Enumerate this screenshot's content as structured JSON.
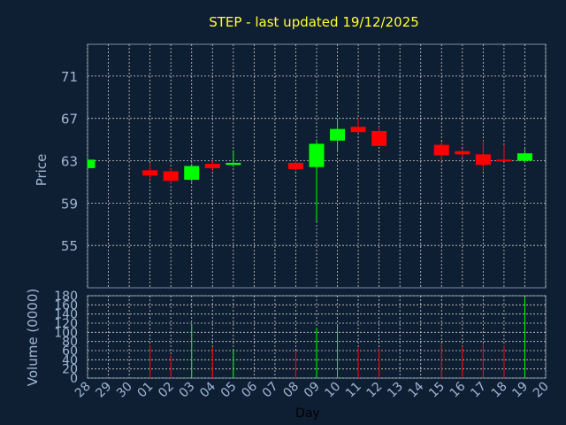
{
  "chart_data": {
    "type": "candlestick",
    "title": "STEP - last updated 19/12/2025",
    "xlabel": "Day",
    "x_ticks": [
      "28",
      "29",
      "30",
      "01",
      "02",
      "03",
      "04",
      "05",
      "06",
      "07",
      "08",
      "09",
      "10",
      "11",
      "12",
      "13",
      "14",
      "15",
      "16",
      "17",
      "18",
      "19",
      "20"
    ],
    "price_panel": {
      "ylabel": "Price",
      "yticks": [
        "55",
        "59",
        "63",
        "67",
        "71"
      ],
      "ylim": [
        51,
        74
      ]
    },
    "volume_panel": {
      "ylabel": "Volume (0000)",
      "yticks": [
        "0",
        "20",
        "40",
        "60",
        "80",
        "100",
        "120",
        "140",
        "160",
        "180"
      ],
      "ylim": [
        0,
        180
      ]
    },
    "candles": [
      {
        "day": "28",
        "open": 62.3,
        "high": 63.2,
        "low": 62.3,
        "close": 63.1,
        "volume": 0
      },
      {
        "day": "01",
        "open": 62.1,
        "high": 62.8,
        "low": 61.2,
        "close": 61.6,
        "volume": 72
      },
      {
        "day": "02",
        "open": 62.0,
        "high": 62.3,
        "low": 60.8,
        "close": 61.1,
        "volume": 50
      },
      {
        "day": "03",
        "open": 61.2,
        "high": 62.7,
        "low": 61.0,
        "close": 62.5,
        "volume": 118
      },
      {
        "day": "04",
        "open": 62.7,
        "high": 63.0,
        "low": 62.0,
        "close": 62.3,
        "volume": 68
      },
      {
        "day": "05",
        "open": 62.6,
        "high": 64.0,
        "low": 62.4,
        "close": 62.8,
        "volume": 62
      },
      {
        "day": "08",
        "open": 62.8,
        "high": 63.0,
        "low": 62.0,
        "close": 62.2,
        "volume": 60
      },
      {
        "day": "09",
        "open": 62.4,
        "high": 65.0,
        "low": 57.2,
        "close": 64.6,
        "volume": 110
      },
      {
        "day": "10",
        "open": 64.9,
        "high": 67.0,
        "low": 63.8,
        "close": 66.0,
        "volume": 118
      },
      {
        "day": "11",
        "open": 66.2,
        "high": 67.0,
        "low": 65.6,
        "close": 65.7,
        "volume": 66
      },
      {
        "day": "12",
        "open": 65.8,
        "high": 66.2,
        "low": 64.4,
        "close": 64.4,
        "volume": 65
      },
      {
        "day": "15",
        "open": 64.5,
        "high": 64.8,
        "low": 63.0,
        "close": 63.5,
        "volume": 74
      },
      {
        "day": "16",
        "open": 63.9,
        "high": 64.1,
        "low": 63.3,
        "close": 63.6,
        "volume": 70
      },
      {
        "day": "17",
        "open": 63.6,
        "high": 64.9,
        "low": 62.0,
        "close": 62.6,
        "volume": 74
      },
      {
        "day": "18",
        "open": 63.1,
        "high": 64.5,
        "low": 63.0,
        "close": 63.0,
        "volume": 72
      },
      {
        "day": "19",
        "open": 63.0,
        "high": 64.1,
        "low": 62.8,
        "close": 63.7,
        "volume": 176
      }
    ],
    "colors": {
      "up": "#00ff00",
      "down": "#ff0000",
      "background": "#0f1f33",
      "grid": "#cccccc",
      "axis_text": "#9fb7d4",
      "title": "#ffff33"
    },
    "grid": true
  }
}
